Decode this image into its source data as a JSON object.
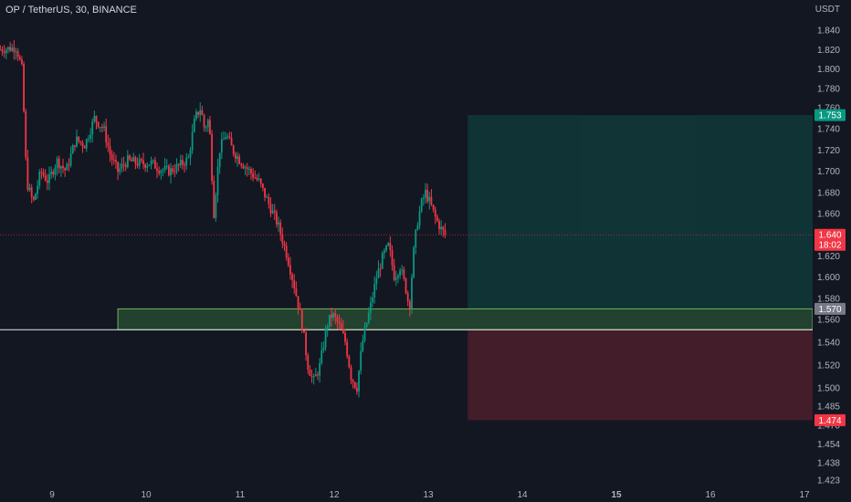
{
  "header": {
    "title": "OP / TetherUS, 30, BINANCE"
  },
  "chart_data": {
    "type": "candlestick",
    "symbol": "OP / TetherUS, 30, BINANCE",
    "currency_label": "USDT",
    "y_ticks": [
      "1.840",
      "1.820",
      "1.800",
      "1.780",
      "1.760",
      "1.740",
      "1.720",
      "1.700",
      "1.680",
      "1.660",
      "1.620",
      "1.600",
      "1.580",
      "1.560",
      "1.540",
      "1.520",
      "1.500",
      "1.485",
      "1.470",
      "1.454",
      "1.438",
      "1.423"
    ],
    "x_ticks": [
      {
        "label": "9",
        "bold": false
      },
      {
        "label": "10",
        "bold": false
      },
      {
        "label": "11",
        "bold": false
      },
      {
        "label": "12",
        "bold": false
      },
      {
        "label": "13",
        "bold": false
      },
      {
        "label": "14",
        "bold": false
      },
      {
        "label": "15",
        "bold": true
      },
      {
        "label": "16",
        "bold": false
      },
      {
        "label": "17",
        "bold": false
      }
    ],
    "price_badges": [
      {
        "price": 1.753,
        "label": "1.753",
        "color": "#089981"
      },
      {
        "price": 1.64,
        "label": "1.640",
        "sublabel": "18:02",
        "color": "#f23645"
      },
      {
        "price": 1.57,
        "label": "1.570",
        "color": "#787b86"
      },
      {
        "price": 1.474,
        "label": "1.474",
        "color": "#f23645"
      }
    ],
    "zones": {
      "support": {
        "top": 1.57,
        "bottom": 1.551,
        "start_day": 9.7
      },
      "target": {
        "top": 1.753,
        "bottom": 1.57,
        "start_day": 13.42
      },
      "stop": {
        "top": 1.551,
        "bottom": 1.474,
        "start_day": 13.42
      }
    },
    "support_line_price": 1.551,
    "last_price": 1.64,
    "path_points": [
      [
        8.45,
        1.82
      ],
      [
        8.62,
        1.822
      ],
      [
        8.68,
        1.8
      ],
      [
        8.73,
        1.69
      ],
      [
        8.8,
        1.67
      ],
      [
        8.88,
        1.7
      ],
      [
        8.96,
        1.69
      ],
      [
        9.05,
        1.71
      ],
      [
        9.15,
        1.7
      ],
      [
        9.25,
        1.73
      ],
      [
        9.35,
        1.725
      ],
      [
        9.45,
        1.75
      ],
      [
        9.55,
        1.74
      ],
      [
        9.62,
        1.715
      ],
      [
        9.7,
        1.7
      ],
      [
        9.8,
        1.71
      ],
      [
        9.95,
        1.707
      ],
      [
        10.05,
        1.708
      ],
      [
        10.15,
        1.702
      ],
      [
        10.25,
        1.7
      ],
      [
        10.35,
        1.705
      ],
      [
        10.45,
        1.712
      ],
      [
        10.52,
        1.75
      ],
      [
        10.58,
        1.76
      ],
      [
        10.62,
        1.74
      ],
      [
        10.67,
        1.75
      ],
      [
        10.72,
        1.66
      ],
      [
        10.78,
        1.72
      ],
      [
        10.85,
        1.735
      ],
      [
        10.92,
        1.72
      ],
      [
        11.0,
        1.71
      ],
      [
        11.1,
        1.7
      ],
      [
        11.2,
        1.69
      ],
      [
        11.3,
        1.67
      ],
      [
        11.4,
        1.65
      ],
      [
        11.5,
        1.62
      ],
      [
        11.58,
        1.59
      ],
      [
        11.65,
        1.56
      ],
      [
        11.72,
        1.52
      ],
      [
        11.78,
        1.505
      ],
      [
        11.85,
        1.52
      ],
      [
        11.92,
        1.555
      ],
      [
        11.98,
        1.565
      ],
      [
        12.05,
        1.555
      ],
      [
        12.12,
        1.54
      ],
      [
        12.18,
        1.51
      ],
      [
        12.24,
        1.5
      ],
      [
        12.3,
        1.54
      ],
      [
        12.38,
        1.57
      ],
      [
        12.45,
        1.6
      ],
      [
        12.52,
        1.62
      ],
      [
        12.58,
        1.63
      ],
      [
        12.64,
        1.6
      ],
      [
        12.7,
        1.61
      ],
      [
        12.76,
        1.59
      ],
      [
        12.8,
        1.57
      ],
      [
        12.84,
        1.62
      ],
      [
        12.88,
        1.65
      ],
      [
        12.93,
        1.67
      ],
      [
        12.97,
        1.68
      ],
      [
        13.02,
        1.67
      ],
      [
        13.08,
        1.655
      ],
      [
        13.14,
        1.645
      ],
      [
        13.18,
        1.64
      ]
    ]
  }
}
